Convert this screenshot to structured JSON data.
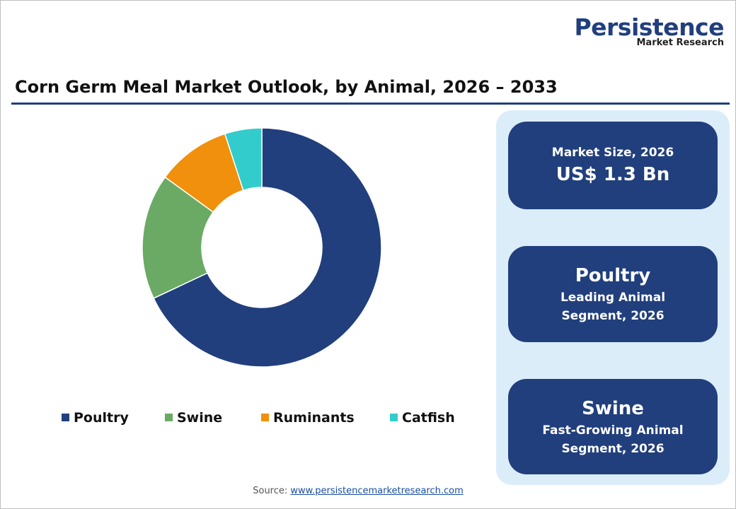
{
  "logo": {
    "name": "Persistence",
    "tagline": "Market Research"
  },
  "chart_data": {
    "type": "donut",
    "title": "Corn Germ Meal Market Outlook, by Animal, 2026 – 2033",
    "categories": [
      "Poultry",
      "Swine",
      "Ruminants",
      "Catfish"
    ],
    "values": [
      68,
      17,
      10,
      5
    ],
    "colors": [
      "#213f7d",
      "#6aaa64",
      "#f0900c",
      "#33cccc"
    ],
    "legend": "bottom"
  },
  "cards": [
    {
      "heading": "Market Size, 2026",
      "text": "US$ 1.3 Bn"
    },
    {
      "heading": "Poultry",
      "text": "Leading Animal Segment, 2026"
    },
    {
      "heading": "Swine",
      "text": "Fast-Growing Animal Segment, 2026"
    }
  ],
  "source": {
    "label": "Source:",
    "link": "www.persistencemarketresearch.com"
  }
}
